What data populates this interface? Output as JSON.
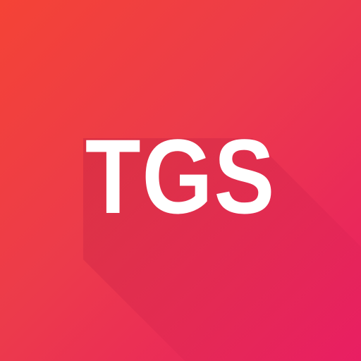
{
  "logo": {
    "text": "TGS"
  },
  "colors": {
    "gradient_start": "#f44336",
    "gradient_end": "#e91e63",
    "text": "#ffffff",
    "shadow": "#b0123f"
  }
}
